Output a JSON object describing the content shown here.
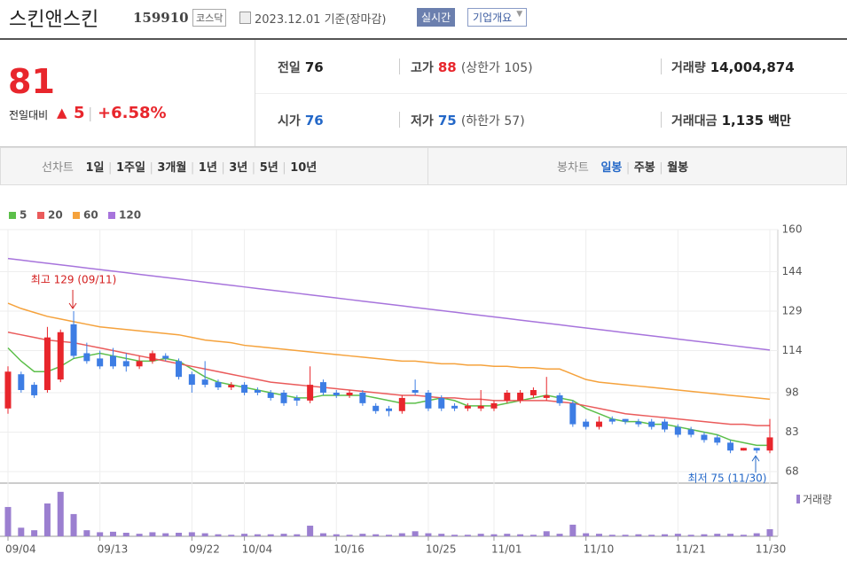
{
  "header": {
    "name": "스킨앤스킨",
    "code": "159910",
    "market": "코스닥",
    "date": "2023.12.01 기준(장마감)",
    "buttons": [
      "실시간",
      "기업개요"
    ]
  },
  "price": {
    "current": 81,
    "change_label": "전일대비",
    "change": 5,
    "rate": "+6.58%"
  },
  "info": [
    {
      "label": "전일",
      "value": "76"
    },
    {
      "label": "고가",
      "value": "88",
      "extra": "(상한가 105)"
    },
    {
      "label": "거래량",
      "value": "14,004,874"
    },
    {
      "label": "시가",
      "value": "76"
    },
    {
      "label": "저가",
      "value": "75",
      "extra": "(하한가 57)"
    },
    {
      "label": "거래대금",
      "value": "1,135",
      "extra": "백만"
    }
  ],
  "nav": {
    "line_label": "선차트",
    "line_items": [
      "1일",
      "1주일",
      "3개월",
      "1년",
      "3년",
      "5년",
      "10년"
    ],
    "candle_label": "봉차트",
    "candle_items": [
      "일봉",
      "주봉",
      "월봉"
    ]
  },
  "chart_data": {
    "type": "candlestick",
    "categories": [
      "09/04",
      null,
      null,
      null,
      null,
      null,
      null,
      "09/13",
      null,
      null,
      null,
      null,
      null,
      null,
      "09/22",
      null,
      null,
      null,
      "10/04",
      null,
      null,
      null,
      null,
      null,
      null,
      "10/16",
      null,
      null,
      null,
      null,
      null,
      null,
      "10/25",
      null,
      null,
      null,
      null,
      "11/01",
      null,
      null,
      null,
      null,
      null,
      null,
      "11/10",
      null,
      null,
      null,
      null,
      null,
      null,
      "11/21",
      null,
      null,
      null,
      null,
      null,
      null,
      "11/30"
    ],
    "open": [
      92,
      105,
      101,
      99,
      103,
      124,
      113,
      111,
      112,
      110,
      108,
      110,
      112,
      110,
      105,
      103,
      102,
      100,
      101,
      99,
      98,
      98,
      96,
      95,
      102,
      98,
      97,
      98,
      93,
      92,
      91,
      99,
      98,
      96,
      93,
      92,
      92,
      92,
      95,
      95,
      97,
      96,
      97,
      94,
      87,
      85,
      88,
      88,
      87,
      87,
      87,
      85,
      84,
      82,
      81,
      79,
      76,
      77,
      76
    ],
    "high": [
      108,
      106,
      102,
      123,
      122,
      129,
      117,
      114,
      115,
      113,
      112,
      114,
      113,
      111,
      106,
      110,
      103,
      102,
      102,
      100,
      99,
      99,
      97,
      108,
      103,
      99,
      99,
      99,
      94,
      93,
      97,
      103,
      99,
      97,
      94,
      94,
      99,
      95,
      99,
      99,
      100,
      104,
      98,
      95,
      88,
      89,
      89,
      88,
      88,
      88,
      88,
      86,
      85,
      83,
      82,
      80,
      77,
      77,
      88
    ],
    "low": [
      90,
      98,
      96,
      98,
      102,
      111,
      109,
      107,
      107,
      106,
      107,
      109,
      110,
      103,
      98,
      100,
      99,
      99,
      97,
      97,
      95,
      93,
      93,
      94,
      97,
      96,
      96,
      93,
      90,
      89,
      90,
      97,
      91,
      91,
      91,
      91,
      91,
      91,
      94,
      94,
      96,
      95,
      93,
      85,
      84,
      84,
      86,
      86,
      85,
      84,
      83,
      81,
      81,
      79,
      78,
      75,
      76,
      75,
      75
    ],
    "close": [
      106,
      99,
      97,
      119,
      121,
      112,
      110,
      108,
      108,
      108,
      110,
      113,
      111,
      104,
      101,
      101,
      100,
      101,
      98,
      98,
      96,
      94,
      95,
      101,
      98,
      97,
      98,
      94,
      91,
      91,
      96,
      98,
      92,
      92,
      92,
      93,
      93,
      94,
      98,
      98,
      99,
      97,
      94,
      86,
      85,
      87,
      87,
      87,
      86,
      85,
      84,
      82,
      82,
      80,
      79,
      76,
      77,
      76,
      81
    ],
    "up_color": "#e8262c",
    "down_color": "#3d7de4",
    "ylim": [
      68,
      160
    ],
    "yticks": [
      68,
      83,
      98,
      114,
      129,
      144,
      160
    ],
    "grid": true,
    "series": [
      {
        "name": "5",
        "color": "#5cbf4a",
        "values": [
          115,
          110,
          106,
          106,
          108,
          111,
          112,
          113,
          112,
          111,
          110,
          110,
          111,
          110,
          107,
          104,
          102,
          101,
          100,
          99,
          98,
          97,
          96,
          96,
          97,
          97,
          97,
          97,
          96,
          95,
          94,
          94,
          95,
          96,
          95,
          93,
          93,
          93,
          94,
          95,
          96,
          97,
          96,
          95,
          92,
          90,
          88,
          87,
          87,
          86,
          86,
          85,
          84,
          83,
          82,
          80,
          79,
          78,
          78
        ]
      },
      {
        "name": "20",
        "color": "#ea5b5b",
        "values": [
          121,
          120,
          119,
          118,
          117.5,
          117,
          116,
          115,
          114,
          113,
          112,
          111,
          110,
          109,
          108,
          107,
          106,
          105,
          104,
          103,
          102,
          101.5,
          101,
          100.5,
          100,
          99.5,
          99,
          98.5,
          98,
          97.5,
          97,
          97,
          96.5,
          96,
          96,
          95.5,
          95.5,
          95,
          95,
          95,
          95,
          95,
          94.5,
          94,
          93,
          92,
          91,
          90,
          89.5,
          89,
          88.5,
          88,
          87.5,
          87,
          86.5,
          86,
          86,
          85.5,
          85.5
        ]
      },
      {
        "name": "60",
        "color": "#f5a23c",
        "values": [
          132,
          130,
          128.5,
          127,
          126,
          125,
          124,
          123,
          122.5,
          122,
          121.5,
          121,
          120.5,
          120,
          119,
          118,
          117.5,
          117,
          116,
          115.5,
          115,
          114.5,
          114,
          113.5,
          113,
          112.5,
          112,
          111.5,
          111,
          110.5,
          110,
          110,
          109.5,
          109,
          109,
          108.5,
          108.5,
          108,
          108,
          107.5,
          107.5,
          107,
          107,
          105,
          103,
          102,
          101.5,
          101,
          100.5,
          100,
          99.5,
          99,
          98.5,
          98,
          97.5,
          97,
          96.5,
          96,
          95.5
        ]
      },
      {
        "name": "120",
        "color": "#a774dc",
        "values": [
          149,
          148.4,
          147.8,
          147.2,
          146.6,
          146,
          145.4,
          144.8,
          144.2,
          143.6,
          143,
          142.4,
          141.8,
          141.2,
          140.6,
          140,
          139.4,
          138.8,
          138.2,
          137.6,
          137,
          136.4,
          135.8,
          135.2,
          134.6,
          134,
          133.4,
          132.8,
          132.2,
          131.6,
          131,
          130.4,
          129.8,
          129.2,
          128.6,
          128,
          127.4,
          126.8,
          126.2,
          125.6,
          125,
          124.4,
          123.8,
          123.2,
          122.6,
          122,
          121.4,
          120.8,
          120.2,
          119.6,
          119,
          118.4,
          117.8,
          117.2,
          116.6,
          116,
          115.4,
          114.8,
          114.2
        ]
      }
    ],
    "volume": {
      "name": "거래량",
      "color": "#9b7fd0",
      "ylim": [
        0,
        100
      ],
      "values": [
        58,
        17,
        12,
        65,
        88,
        44,
        12,
        8,
        9,
        7,
        5,
        8,
        6,
        7,
        8,
        6,
        4,
        3,
        5,
        4,
        4,
        5,
        4,
        21,
        6,
        4,
        3,
        5,
        4,
        3,
        6,
        10,
        6,
        5,
        3,
        3,
        5,
        4,
        5,
        4,
        3,
        10,
        5,
        23,
        6,
        5,
        3,
        3,
        4,
        3,
        4,
        5,
        3,
        4,
        5,
        5,
        3,
        6,
        14
      ]
    },
    "annotations": [
      "최고 129 (09/11)",
      "최저 75 (11/30)"
    ]
  }
}
